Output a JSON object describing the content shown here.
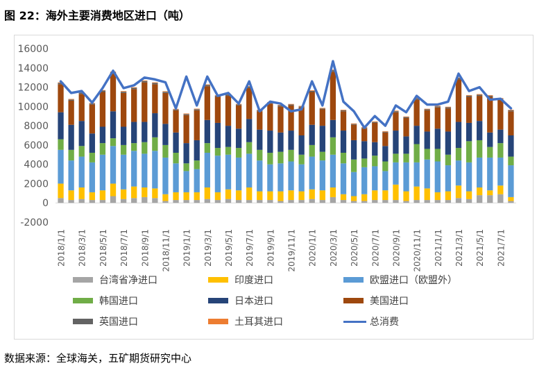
{
  "figure_title": "图 22：海外主要消费地区进口（吨）",
  "source": "数据来源：全球海关，五矿期货研究中心",
  "chart_data": {
    "type": "bar",
    "stacked": true,
    "ylim": [
      -2000,
      16000
    ],
    "yticks": [
      "16000",
      "14000",
      "12000",
      "10000",
      "8000",
      "6000",
      "4000",
      "2000",
      "0",
      "-2000"
    ],
    "ytick_values": [
      16000,
      14000,
      12000,
      10000,
      8000,
      6000,
      4000,
      2000,
      0,
      -2000
    ],
    "grid": false,
    "legend_position": "bottom",
    "categories": [
      "2018/1/1",
      "2018/2/1",
      "2018/3/1",
      "2018/4/1",
      "2018/5/1",
      "2018/6/1",
      "2018/7/1",
      "2018/8/1",
      "2018/9/1",
      "2018/10/1",
      "2018/11/1",
      "2018/12/1",
      "2019/1/1",
      "2019/2/1",
      "2019/3/1",
      "2019/4/1",
      "2019/5/1",
      "2019/6/1",
      "2019/7/1",
      "2019/8/1",
      "2019/9/1",
      "2019/10/1",
      "2019/11/1",
      "2019/12/1",
      "2020/1/1",
      "2020/2/1",
      "2020/3/1",
      "2020/4/1",
      "2020/5/1",
      "2020/6/1",
      "2020/7/1",
      "2020/8/1",
      "2020/9/1",
      "2020/10/1",
      "2020/11/1",
      "2020/12/1",
      "2021/1/1",
      "2021/2/1",
      "2021/3/1",
      "2021/4/1",
      "2021/5/1",
      "2021/6/1",
      "2021/7/1",
      "2021/8/1"
    ],
    "xtick_labels": [
      "2018/1/1",
      "2018/3/1",
      "2018/5/1",
      "2018/7/1",
      "2018/9/1",
      "2018/11/1",
      "2019/1/1",
      "2019/3/1",
      "2019/5/1",
      "2019/7/1",
      "2019/9/1",
      "2019/11/1",
      "2020/1/1",
      "2020/3/1",
      "2020/5/1",
      "2020/7/1",
      "2020/9/1",
      "2020/11/1",
      "2021/1/1",
      "2021/3/1",
      "2021/5/1",
      "2021/7/1"
    ],
    "series": [
      {
        "name": "台湾省净进口",
        "color": "#a5a5a5",
        "values": [
          500,
          300,
          400,
          300,
          300,
          700,
          400,
          500,
          600,
          500,
          200,
          300,
          300,
          300,
          400,
          300,
          400,
          300,
          300,
          300,
          300,
          200,
          300,
          300,
          400,
          300,
          600,
          300,
          200,
          200,
          300,
          300,
          300,
          200,
          300,
          300,
          300,
          300,
          500,
          400,
          800,
          800,
          900,
          200
        ]
      },
      {
        "name": "印度进口",
        "color": "#ffc000",
        "values": [
          1500,
          1000,
          1200,
          800,
          1000,
          1300,
          1000,
          1200,
          1000,
          1000,
          700,
          800,
          800,
          800,
          1200,
          800,
          1000,
          1000,
          1300,
          900,
          900,
          1000,
          1000,
          900,
          1000,
          1000,
          1000,
          600,
          500,
          700,
          1000,
          1000,
          1600,
          1000,
          1400,
          1200,
          800,
          900,
          1300,
          800,
          800,
          500,
          900,
          400
        ]
      },
      {
        "name": "欧盟进口（欧盟外）",
        "color": "#5b9bd5",
        "values": [
          3500,
          3100,
          3200,
          3100,
          3700,
          3900,
          3600,
          3700,
          3500,
          3900,
          3800,
          3000,
          2200,
          2400,
          3600,
          3800,
          3600,
          3400,
          3500,
          3200,
          2800,
          2900,
          3000,
          2800,
          3400,
          3100,
          3400,
          3200,
          2500,
          2800,
          2500,
          2000,
          2300,
          3000,
          2500,
          3000,
          3200,
          2700,
          2600,
          3000,
          3100,
          3400,
          2900,
          3300
        ]
      },
      {
        "name": "韩国进口",
        "color": "#70ad47",
        "values": [
          1100,
          1100,
          1100,
          1000,
          1200,
          800,
          1000,
          800,
          1200,
          1400,
          1300,
          1100,
          800,
          900,
          1000,
          800,
          800,
          1000,
          1200,
          1100,
          1200,
          1200,
          1200,
          1000,
          1200,
          900,
          1800,
          1100,
          1300,
          900,
          1100,
          1000,
          900,
          900,
          1900,
          1100,
          1300,
          1100,
          1300,
          2200,
          1800,
          1100,
          1500,
          900
        ]
      },
      {
        "name": "日本进口",
        "color": "#264478",
        "values": [
          2800,
          2600,
          2600,
          2000,
          1700,
          2800,
          1900,
          2200,
          2100,
          2500,
          2200,
          2100,
          2100,
          2100,
          2400,
          2600,
          2200,
          2000,
          2400,
          2100,
          2300,
          2000,
          2000,
          2000,
          2100,
          2700,
          1800,
          2300,
          2000,
          1800,
          1400,
          1600,
          2400,
          1800,
          1900,
          1800,
          2100,
          2400,
          2700,
          1900,
          2000,
          1500,
          1400,
          2200
        ]
      },
      {
        "name": "美国进口",
        "color": "#9e480e",
        "values": [
          2900,
          2500,
          2800,
          3000,
          3600,
          3900,
          3500,
          3400,
          4100,
          3000,
          3200,
          2300,
          2900,
          3100,
          3500,
          2700,
          3100,
          2400,
          3200,
          1900,
          2800,
          2700,
          2600,
          2900,
          3400,
          1700,
          5000,
          2000,
          1600,
          1300,
          2000,
          1400,
          1900,
          1900,
          2700,
          2200,
          2200,
          2400,
          4400,
          2700,
          2600,
          3700,
          3100,
          2500
        ]
      },
      {
        "name": "英国进口",
        "color": "#636363",
        "values": [
          150,
          120,
          120,
          100,
          150,
          150,
          130,
          130,
          140,
          140,
          120,
          90,
          110,
          110,
          130,
          110,
          110,
          100,
          140,
          90,
          100,
          110,
          100,
          100,
          120,
          90,
          160,
          100,
          80,
          90,
          90,
          80,
          110,
          100,
          120,
          100,
          110,
          110,
          140,
          120,
          120,
          110,
          110,
          100
        ]
      },
      {
        "name": "土耳其进口",
        "color": "#ed7d31",
        "values": [
          50,
          60,
          60,
          60,
          50,
          60,
          60,
          60,
          60,
          60,
          60,
          60,
          60,
          60,
          60,
          60,
          60,
          60,
          60,
          60,
          60,
          60,
          60,
          60,
          60,
          60,
          60,
          60,
          60,
          60,
          60,
          60,
          60,
          60,
          60,
          60,
          60,
          60,
          60,
          60,
          60,
          60,
          60,
          60
        ]
      }
    ],
    "line_series": {
      "name": "总消费",
      "color": "#4472c4",
      "values": [
        12600,
        11400,
        11600,
        10400,
        11900,
        13700,
        11900,
        12200,
        13000,
        12800,
        12500,
        9800,
        13100,
        10100,
        13100,
        11100,
        11400,
        10300,
        12600,
        9500,
        10500,
        10300,
        9500,
        9700,
        12600,
        10100,
        14700,
        10500,
        9500,
        7800,
        9000,
        8000,
        10100,
        9400,
        11100,
        10200,
        10200,
        10500,
        13400,
        11600,
        12000,
        10700,
        10800,
        9800
      ]
    }
  },
  "legend": [
    {
      "label": "台湾省净进口",
      "color": "#a5a5a5",
      "kind": "bar"
    },
    {
      "label": "印度进口",
      "color": "#ffc000",
      "kind": "bar"
    },
    {
      "label": "欧盟进口（欧盟外）",
      "color": "#5b9bd5",
      "kind": "bar"
    },
    {
      "label": "韩国进口",
      "color": "#70ad47",
      "kind": "bar"
    },
    {
      "label": "日本进口",
      "color": "#264478",
      "kind": "bar"
    },
    {
      "label": "美国进口",
      "color": "#9e480e",
      "kind": "bar"
    },
    {
      "label": "英国进口",
      "color": "#636363",
      "kind": "bar"
    },
    {
      "label": "土耳其进口",
      "color": "#ed7d31",
      "kind": "bar"
    },
    {
      "label": "总消费",
      "color": "#4472c4",
      "kind": "line"
    }
  ]
}
